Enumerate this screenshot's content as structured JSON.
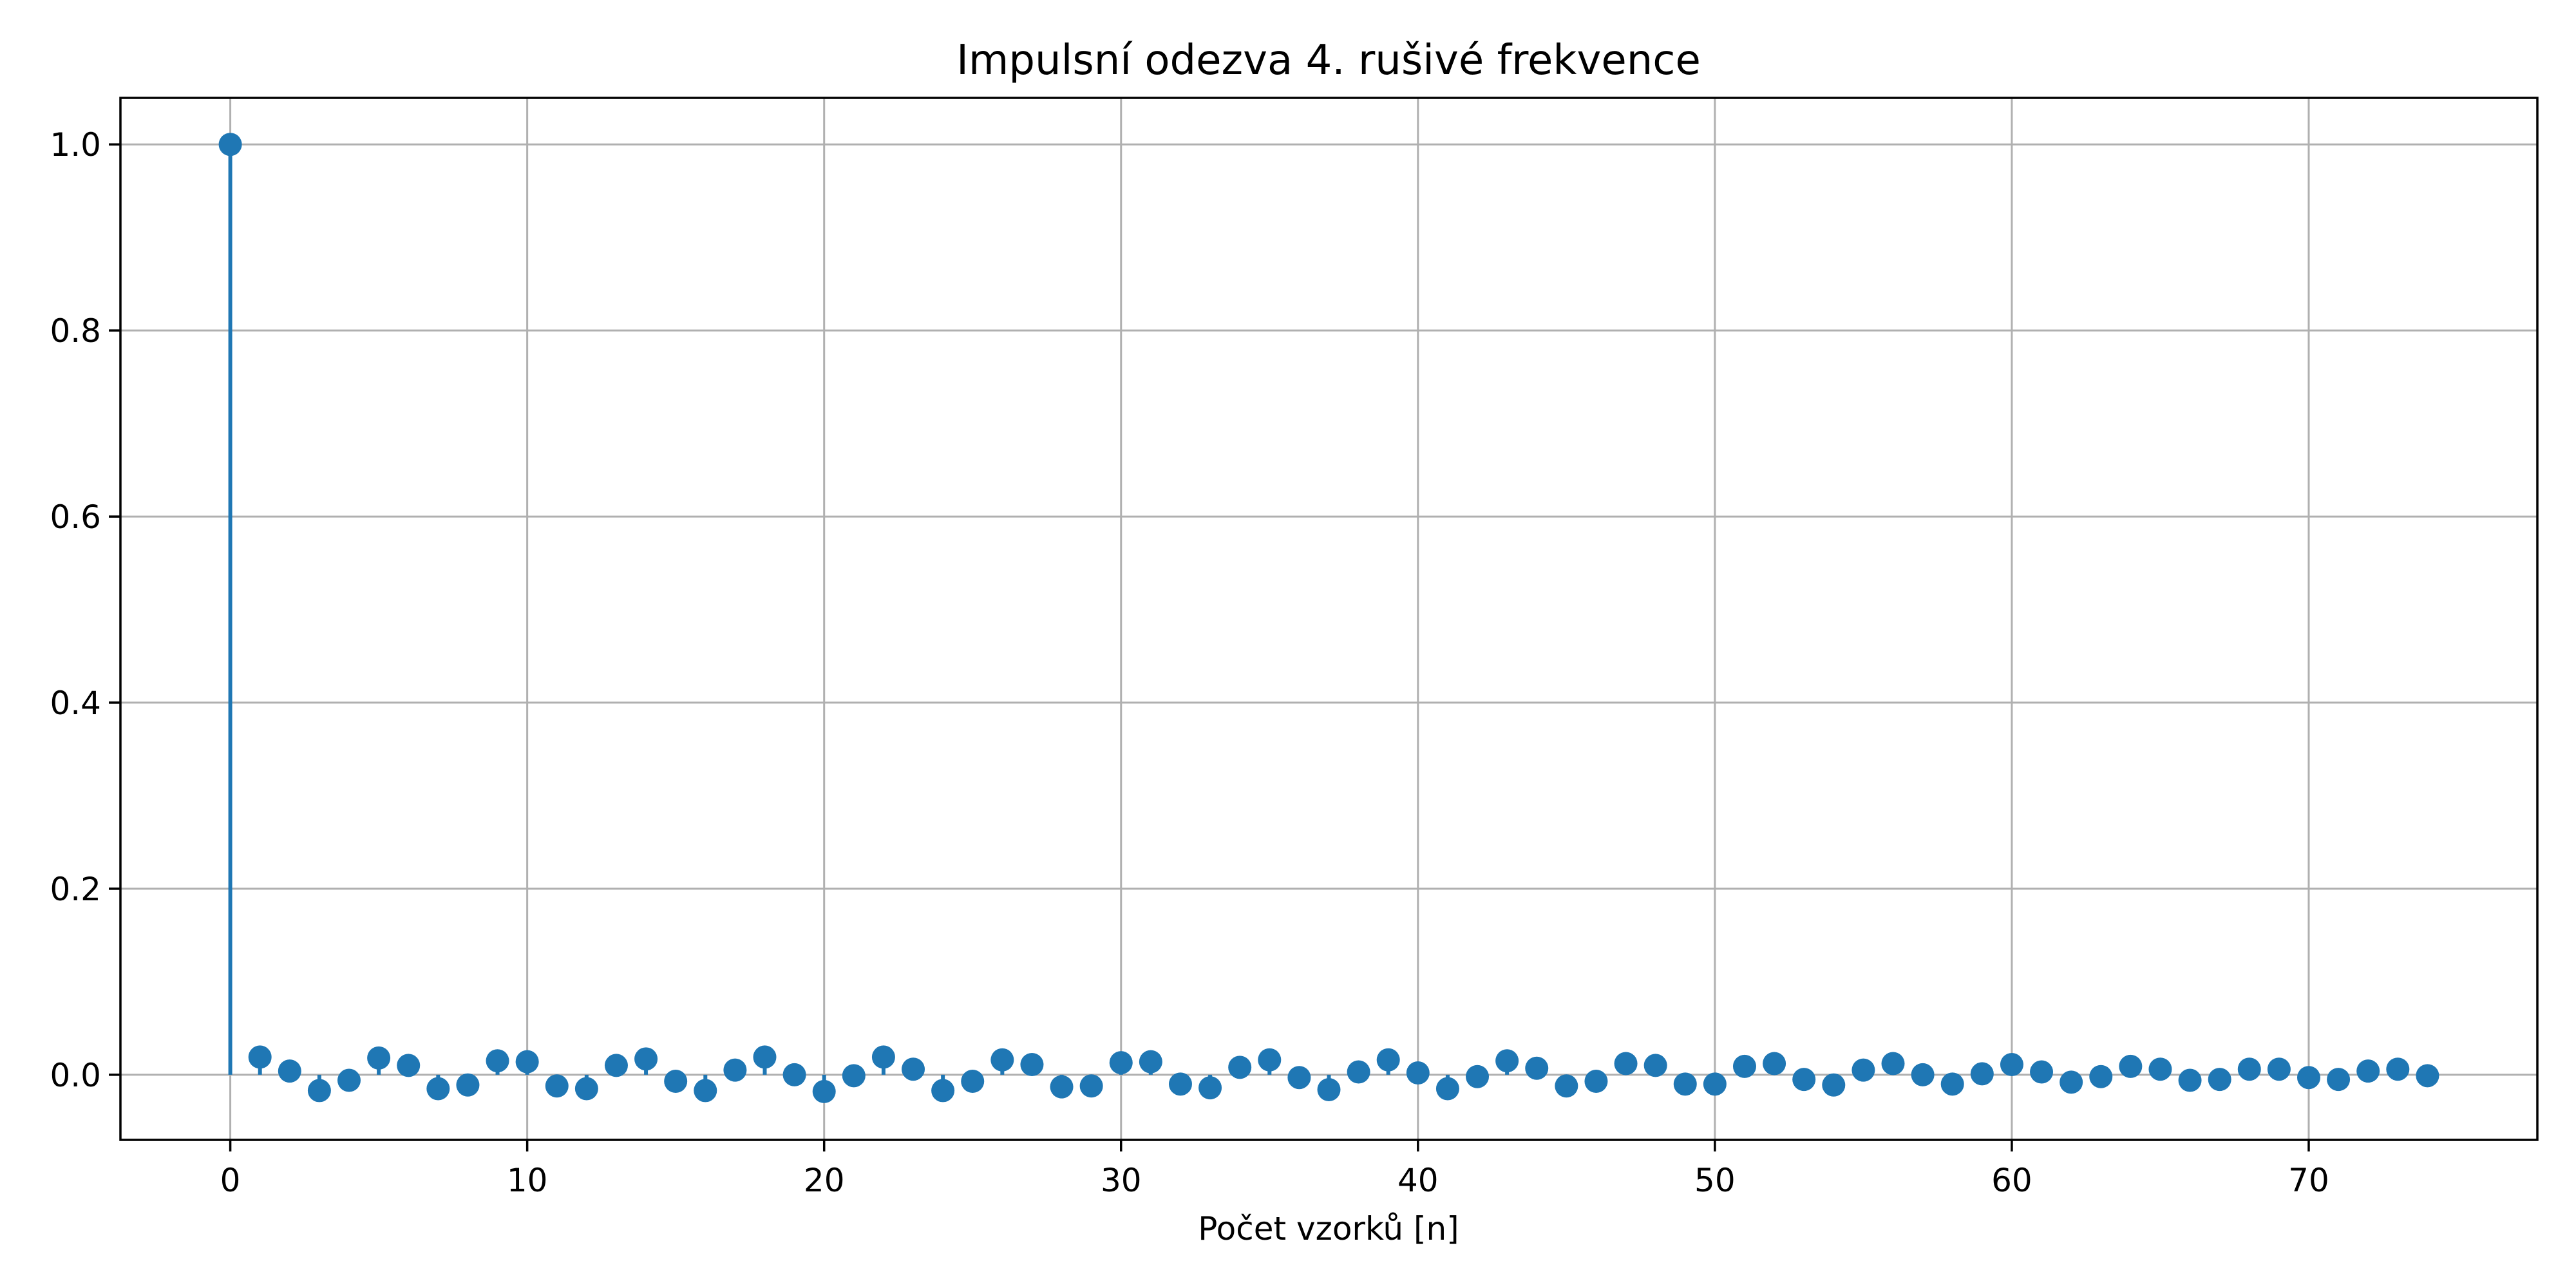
{
  "chart_data": {
    "type": "stem",
    "title": "Impulsní odezva 4. rušivé frekvence",
    "xlabel": "Počet vzorků [n]",
    "ylabel": "",
    "xlim": [
      -3.7,
      77.7
    ],
    "ylim": [
      -0.07,
      1.05
    ],
    "xticks": [
      0,
      10,
      20,
      30,
      40,
      50,
      60,
      70
    ],
    "xtick_labels": [
      "0",
      "10",
      "20",
      "30",
      "40",
      "50",
      "60",
      "70"
    ],
    "yticks": [
      0.0,
      0.2,
      0.4,
      0.6,
      0.8,
      1.0
    ],
    "ytick_labels": [
      "0.0",
      "0.2",
      "0.4",
      "0.6",
      "0.8",
      "1.0"
    ],
    "grid": true,
    "color": "#1f77b4",
    "x": [
      0,
      1,
      2,
      3,
      4,
      5,
      6,
      7,
      8,
      9,
      10,
      11,
      12,
      13,
      14,
      15,
      16,
      17,
      18,
      19,
      20,
      21,
      22,
      23,
      24,
      25,
      26,
      27,
      28,
      29,
      30,
      31,
      32,
      33,
      34,
      35,
      36,
      37,
      38,
      39,
      40,
      41,
      42,
      43,
      44,
      45,
      46,
      47,
      48,
      49,
      50,
      51,
      52,
      53,
      54,
      55,
      56,
      57,
      58,
      59,
      60,
      61,
      62,
      63,
      64,
      65,
      66,
      67,
      68,
      69,
      70,
      71,
      72,
      73,
      74
    ],
    "values": [
      1.0,
      0.019,
      0.004,
      -0.017,
      -0.006,
      0.018,
      0.01,
      -0.015,
      -0.011,
      0.015,
      0.014,
      -0.012,
      -0.015,
      0.01,
      0.017,
      -0.007,
      -0.017,
      0.005,
      0.019,
      0.0,
      -0.018,
      -0.001,
      0.019,
      0.006,
      -0.017,
      -0.007,
      0.016,
      0.011,
      -0.013,
      -0.012,
      0.013,
      0.014,
      -0.01,
      -0.014,
      0.008,
      0.016,
      -0.003,
      -0.016,
      0.003,
      0.016,
      0.002,
      -0.015,
      -0.002,
      0.015,
      0.007,
      -0.012,
      -0.007,
      0.012,
      0.01,
      -0.01,
      -0.01,
      0.009,
      0.012,
      -0.005,
      -0.011,
      0.005,
      0.012,
      0.0,
      -0.01,
      0.001,
      0.011,
      0.003,
      -0.008,
      -0.002,
      0.009,
      0.006,
      -0.006,
      -0.005,
      0.006,
      0.006,
      -0.003,
      -0.005,
      0.004,
      0.006,
      -0.001
    ]
  }
}
